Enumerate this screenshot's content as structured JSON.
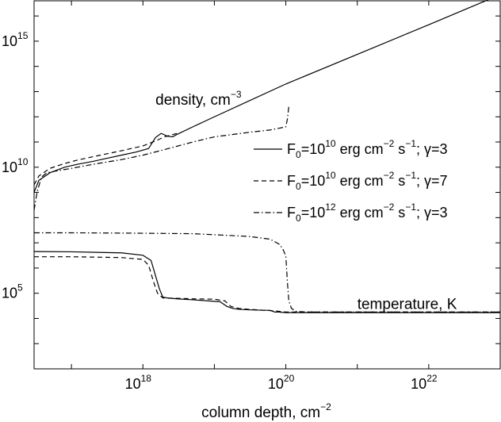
{
  "chart_data": {
    "type": "line",
    "title": "",
    "xlabel": "column depth, cm",
    "xlabel_exp": "−2",
    "ylabel": "",
    "xscale": "log",
    "yscale": "log",
    "xlim": [
      3e+16,
      1e+23
    ],
    "ylim": [
      100,
      4e+16
    ],
    "x_ticks": [
      {
        "base": "10",
        "exp": "18",
        "value": 1e+18
      },
      {
        "base": "10",
        "exp": "20",
        "value": 1e+20
      },
      {
        "base": "10",
        "exp": "22",
        "value": 1e+22
      }
    ],
    "y_ticks": [
      {
        "base": "10",
        "exp": "5",
        "value": 100000.0
      },
      {
        "base": "10",
        "exp": "10",
        "value": 10000000000.0
      },
      {
        "base": "10",
        "exp": "15",
        "value": 1000000000000000.0
      }
    ],
    "annotations": [
      {
        "text": "density, cm",
        "exp": "−3",
        "x": 1.5e+18,
        "y": 3000000000000.0
      },
      {
        "text": "temperature, K",
        "exp": "",
        "x": 1e+21,
        "y": 24000.0
      }
    ],
    "legend_position": "center-right",
    "series": [
      {
        "name": "F0=10^10 erg cm^-2 s^-1; γ=3",
        "legend": {
          "F": "F",
          "sub": "0",
          "mid": "=10",
          "exp1": "10",
          "a": " erg cm",
          "exp2": "−2",
          "b": " s",
          "exp3": "−1",
          "c": "; γ=3"
        },
        "style": "solid",
        "segments": [
          {
            "x": [
              3e+16,
              3.5e+16,
              5e+16,
              8e+16,
              1.2e+17,
              2e+17,
              3e+17,
              5e+17,
              8e+17,
              1.2e+18,
              1.5e+18,
              1.8e+18,
              2.2e+18,
              2.6e+18,
              3e+18,
              5e+18,
              1e+19,
              1e+20,
              1e+21,
              1e+22,
              1e+23
            ],
            "y": [
              1000000000.0,
              3000000000.0,
              6000000000.0,
              10000000000.0,
              13000000000.0,
              17000000000.0,
              22000000000.0,
              30000000000.0,
              40000000000.0,
              55000000000.0,
              150000000000.0,
              220000000000.0,
              170000000000.0,
              160000000000.0,
              200000000000.0,
              400000000000.0,
              1000000000000.0,
              20000000000000.0,
              300000000000000.0,
              4500000000000000.0,
              7e+16
            ]
          },
          {
            "x": [
              3e+16,
              1e+17,
              5e+17,
              1e+18,
              1.3e+18,
              1.5e+18,
              1.7e+18,
              1.9e+18,
              2.2e+18,
              3e+18,
              5e+18,
              8e+18,
              1.2e+19,
              1.5e+19,
              1.8e+19,
              2.2e+19,
              3e+19,
              5e+19,
              6e+19,
              7e+19,
              8e+19,
              1e+20,
              1e+21,
              1e+22,
              1e+23
            ],
            "y": [
              4500000.0,
              4400000.0,
              4000000.0,
              3200000.0,
              2000000.0,
              500000.0,
              150000.0,
              70000.0,
              65000.0,
              60000.0,
              55000.0,
              50000.0,
              46000.0,
              30000.0,
              25000.0,
              23000.0,
              22000.0,
              21000.0,
              21000.0,
              18000.0,
              18000.0,
              17000.0,
              17000.0,
              17000.0,
              17000.0
            ]
          }
        ]
      },
      {
        "name": "F0=10^10 erg cm^-2 s^-1; γ=7",
        "legend": {
          "F": "F",
          "sub": "0",
          "mid": "=10",
          "exp1": "10",
          "a": " erg cm",
          "exp2": "−2",
          "b": " s",
          "exp3": "−1",
          "c": "; γ=7"
        },
        "style": "dashed",
        "segments": [
          {
            "x": [
              3e+16,
              3.5e+16,
              5e+16,
              8e+16,
              1.2e+17,
              2e+17,
              5e+17,
              1e+18,
              1.5e+18,
              2e+18,
              3e+18
            ],
            "y": [
              2000000000.0,
              4500000000.0,
              9000000000.0,
              14000000000.0,
              19000000000.0,
              26000000000.0,
              45000000000.0,
              70000000000.0,
              110000000000.0,
              160000000000.0,
              220000000000.0
            ]
          },
          {
            "x": [
              3e+16,
              1e+17,
              5e+17,
              1e+18,
              1.2e+18,
              1.4e+18,
              1.6e+18,
              1.9e+18,
              3e+18,
              5e+18,
              1e+19,
              1.4e+19,
              1.7e+19,
              2.2e+19,
              3e+19,
              5e+19,
              7e+19,
              1e+20,
              1e+21,
              1e+22,
              1e+23
            ],
            "y": [
              2800000.0,
              2800000.0,
              2600000.0,
              2200000.0,
              1300000.0,
              300000.0,
              100000.0,
              65000.0,
              63000.0,
              60000.0,
              58000.0,
              50000.0,
              30000.0,
              25000.0,
              23000.0,
              21000.0,
              20000.0,
              18000.0,
              18000.0,
              18000.0,
              18000.0
            ]
          }
        ]
      },
      {
        "name": "F0=10^12 erg cm^-2 s^-1; γ=3",
        "legend": {
          "F": "F",
          "sub": "0",
          "mid": "=10",
          "exp1": "12",
          "a": " erg cm",
          "exp2": "−2",
          "b": " s",
          "exp3": "−1",
          "c": "; γ=3"
        },
        "style": "dashdot",
        "segments": [
          {
            "x": [
              3e+16,
              3.3e+16,
              3.8e+16,
              4.5e+16,
              6e+16,
              1e+17,
              2e+17,
              5e+17,
              1e+18,
              2e+18,
              5e+18,
              1e+19,
              3e+19,
              6e+19,
              8e+19,
              1e+20,
              1.05e+20,
              1.1e+20
            ],
            "y": [
              200000000.0,
              1000000000.0,
              4000000000.0,
              6000000000.0,
              7000000000.0,
              9000000000.0,
              13000000000.0,
              20000000000.0,
              30000000000.0,
              50000000000.0,
              100000000000.0,
              160000000000.0,
              240000000000.0,
              300000000000.0,
              350000000000.0,
              400000000000.0,
              800000000000.0,
              2500000000000.0
            ]
          },
          {
            "x": [
              3e+16,
              1e+17,
              1e+18,
              5e+18,
              1e+19,
              3e+19,
              6e+19,
              8e+19,
              9e+19,
              1e+20,
              1.05e+20,
              1.1e+20,
              1.2e+20,
              1.4e+20,
              2e+20,
              1e+21,
              1e+22,
              1e+23
            ],
            "y": [
              25000000.0,
              25000000.0,
              24000000.0,
              23000000.0,
              21000000.0,
              18000000.0,
              14000000.0,
              9000000.0,
              6000000.0,
              3000000.0,
              300000.0,
              50000.0,
              25000.0,
              19000.0,
              18000.0,
              18000.0,
              18000.0,
              18000.0
            ]
          }
        ]
      }
    ]
  }
}
